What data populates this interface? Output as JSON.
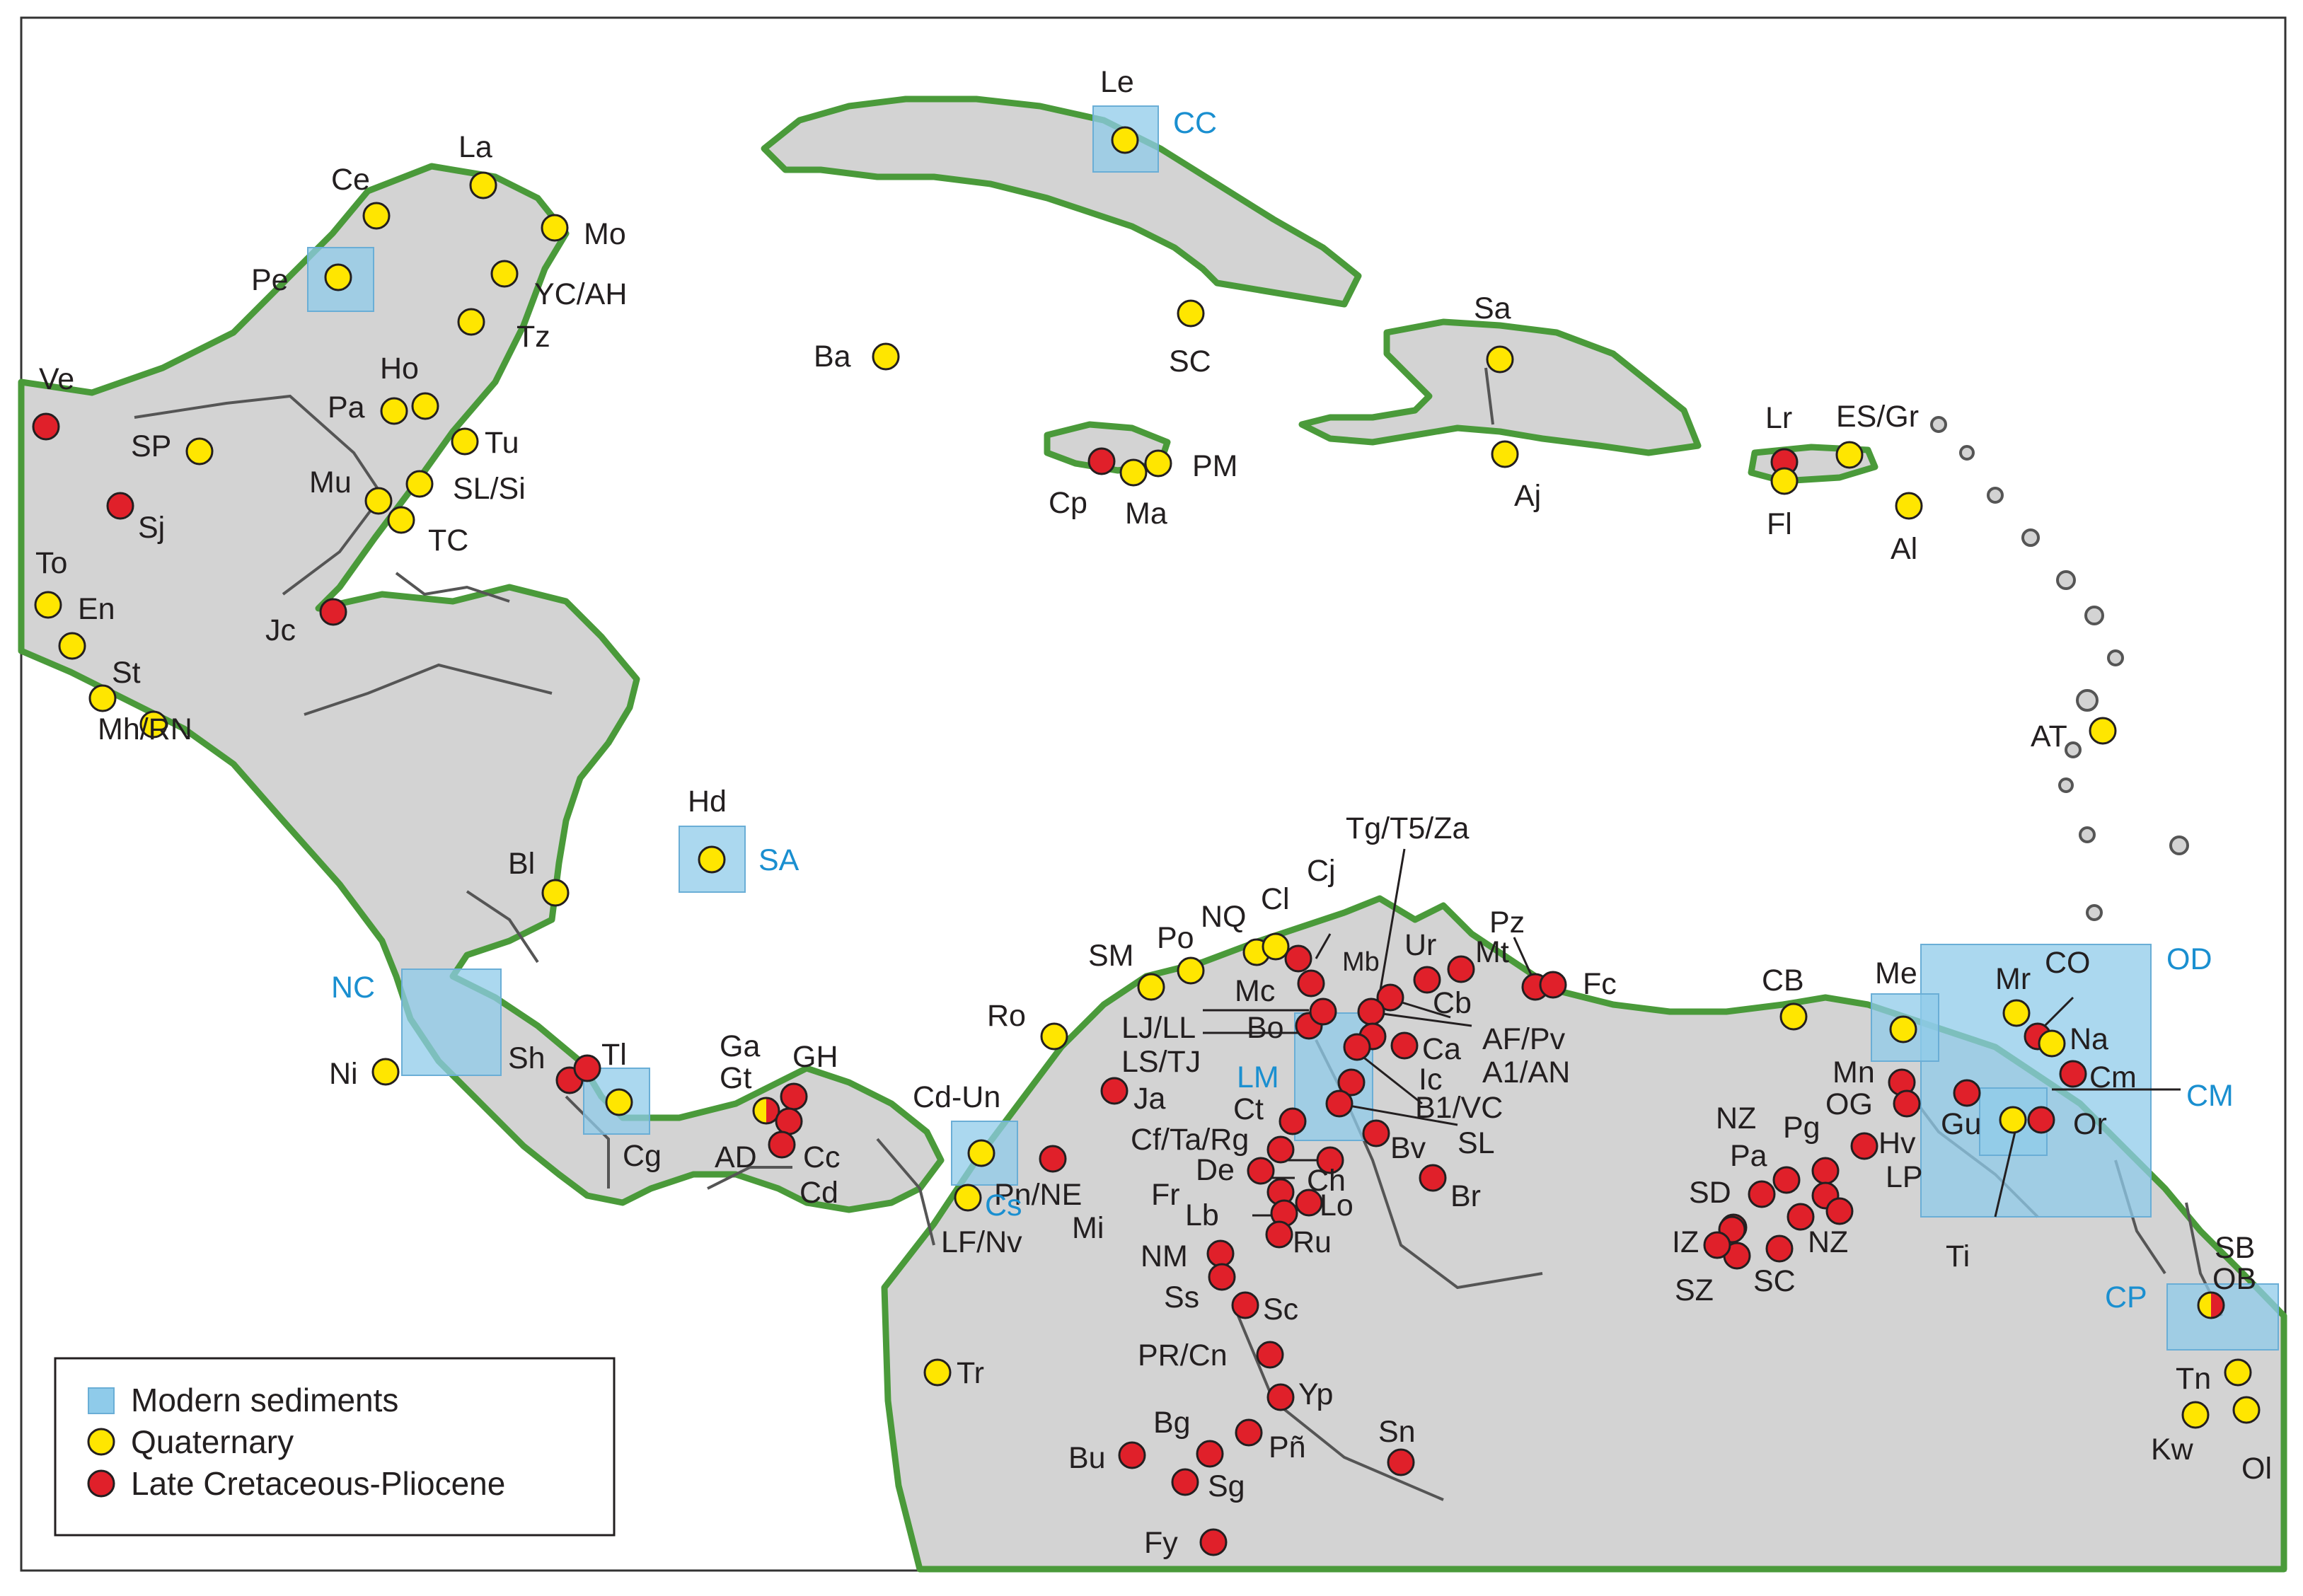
{
  "colors": {
    "land": "#d3d3d3",
    "coast": "#4a9a3a",
    "border": "#555555",
    "modern": "#8fcbea",
    "quaternary": "#ffe600",
    "cretaceous": "#e0202a",
    "blue_label": "#1a8fd0"
  },
  "legend": {
    "modern": "Modern sediments",
    "quaternary": "Quaternary",
    "cretaceous": "Late Cretaceous-Pliocene"
  },
  "boxes": [
    {
      "label": "CC"
    },
    {
      "label": "SA"
    },
    {
      "label": "NC"
    },
    {
      "label": "LM"
    },
    {
      "label": "Cs"
    },
    {
      "label": "OD"
    },
    {
      "label": "CM"
    },
    {
      "label": "CP"
    },
    {
      "label": "Pe"
    }
  ],
  "sites_quaternary": [
    "Le",
    "Ce",
    "La",
    "Mo",
    "YC/AH",
    "Tz",
    "Ho",
    "Pa",
    "Tu",
    "SL/Si",
    "Mu",
    "TC",
    "SP",
    "To",
    "En",
    "St",
    "Mh/RN",
    "Bl",
    "Hd",
    "Ni",
    "Tl",
    "Cg",
    "Ba",
    "SC",
    "Ma",
    "PM",
    "Sa",
    "Aj",
    "Fl",
    "ES/Gr",
    "Al",
    "AT",
    "SM",
    "Po",
    "NQ",
    "Cl",
    "Ro",
    "Cd-Un",
    "LF/Nv",
    "Tr",
    "CB",
    "Me",
    "Mr",
    "Na",
    "Gu",
    "Tn",
    "Kw",
    "Ol"
  ],
  "sites_cretaceous": [
    "Ve",
    "Sj",
    "Jc",
    "Sh",
    "Cp",
    "Lr",
    "GH",
    "Cc",
    "Cd",
    "Pn/NE",
    "Mi",
    "Ja",
    "Cj",
    "Mc",
    "Bo",
    "Ct",
    "Cb",
    "Ur",
    "Mt",
    "Pz",
    "Fc",
    "Ca",
    "Ic",
    "B1/VC",
    "SL",
    "Bv",
    "Ch",
    "Br",
    "Fr",
    "De",
    "Lo",
    "Lb",
    "Ru",
    "NM",
    "Ss",
    "Sc",
    "PR/Cn",
    "Yp",
    "Pñ",
    "Bg",
    "Bu",
    "Sg",
    "Fy",
    "Sn",
    "CO",
    "Cm",
    "Mn",
    "OG",
    "Hv",
    "Or",
    "NZ",
    "Pa",
    "Pg",
    "LP",
    "SD",
    "IZ",
    "SZ",
    "SC",
    "Ti"
  ],
  "sites_mixed": [
    "Ga",
    "Gt",
    "AD",
    "SB",
    "OB"
  ],
  "labels": {
    "Le": "Le",
    "CC": "CC",
    "Ce": "Ce",
    "La": "La",
    "Mo": "Mo",
    "Pe": "Pe",
    "YC": "YC/AH",
    "Tz": "Tz",
    "Ho": "Ho",
    "Pa1": "Pa",
    "Tu": "Tu",
    "SLSi": "SL/Si",
    "Mu": "Mu",
    "TC": "TC",
    "SP": "SP",
    "Ve": "Ve",
    "Sj": "Sj",
    "To": "To",
    "En": "En",
    "St": "St",
    "MhRN": "Mh/RN",
    "Jc": "Jc",
    "Bl": "Bl",
    "Hd": "Hd",
    "SA": "SA",
    "NC": "NC",
    "Ni": "Ni",
    "Sh": "Sh",
    "Tl": "Tl",
    "Cg": "Cg",
    "Ga": "Ga",
    "Gt": "Gt",
    "GH": "GH",
    "AD": "AD",
    "Cc": "Cc",
    "Cd": "Cd",
    "Ba": "Ba",
    "SC1": "SC",
    "Cp": "Cp",
    "Ma": "Ma",
    "PM": "PM",
    "Sa": "Sa",
    "Aj": "Aj",
    "Lr": "Lr",
    "Fl": "Fl",
    "ESGr": "ES/Gr",
    "Al": "Al",
    "AT": "AT",
    "SM": "SM",
    "Po": "Po",
    "NQ": "NQ",
    "Cl": "Cl",
    "Cj": "Cj",
    "TgT5Za": "Tg/T5/Za",
    "Mb": "Mb",
    "Ur": "Ur",
    "Mt": "Mt",
    "Pz": "Pz",
    "Fc": "Fc",
    "Mc": "Mc",
    "Cb": "Cb",
    "Bo": "Bo",
    "LJLL": "LJ/LL",
    "LSTJ": "LS/TJ",
    "LM": "LM",
    "AFPv": "AF/Pv",
    "Ca": "Ca",
    "A1AN": "A1/AN",
    "Ic": "Ic",
    "B1VC": "B1/VC",
    "Ct": "Ct",
    "SL2": "SL",
    "CfTaRg": "Cf/Ta/Rg",
    "Bv": "Bv",
    "De": "De",
    "Ch": "Ch",
    "Br": "Br",
    "Fr": "Fr",
    "Lo": "Lo",
    "Lb": "Lb",
    "Ru": "Ru",
    "Ro": "Ro",
    "CdUn": "Cd-Un",
    "Ja": "Ja",
    "PnNE": "Pn/NE",
    "Mi": "Mi",
    "Cs": "Cs",
    "LFNv": "LF/Nv",
    "NM": "NM",
    "Ss": "Ss",
    "Sc": "Sc",
    "PRCn": "PR/Cn",
    "Yp": "Yp",
    "Bg": "Bg",
    "Bu": "Bu",
    "Pn": "Pñ",
    "Sg": "Sg",
    "Sn": "Sn",
    "Fy": "Fy",
    "Tr": "Tr",
    "CB": "CB",
    "Me": "Me",
    "OD": "OD",
    "Mr": "Mr",
    "CO": "CO",
    "Na": "Na",
    "Cm": "Cm",
    "Mn": "Mn",
    "OG": "OG",
    "CM": "CM",
    "Gu": "Gu",
    "Or": "Or",
    "Ti": "Ti",
    "Hv": "Hv",
    "NZ1": "NZ",
    "Pg": "Pg",
    "Pa2": "Pa",
    "LP": "LP",
    "SD": "SD",
    "IZ": "IZ",
    "NZ2": "NZ",
    "SZ": "SZ",
    "SC2": "SC",
    "SB": "SB",
    "OB": "OB",
    "CP": "CP",
    "Tn": "Tn",
    "Kw": "Kw",
    "Ol": "Ol"
  }
}
